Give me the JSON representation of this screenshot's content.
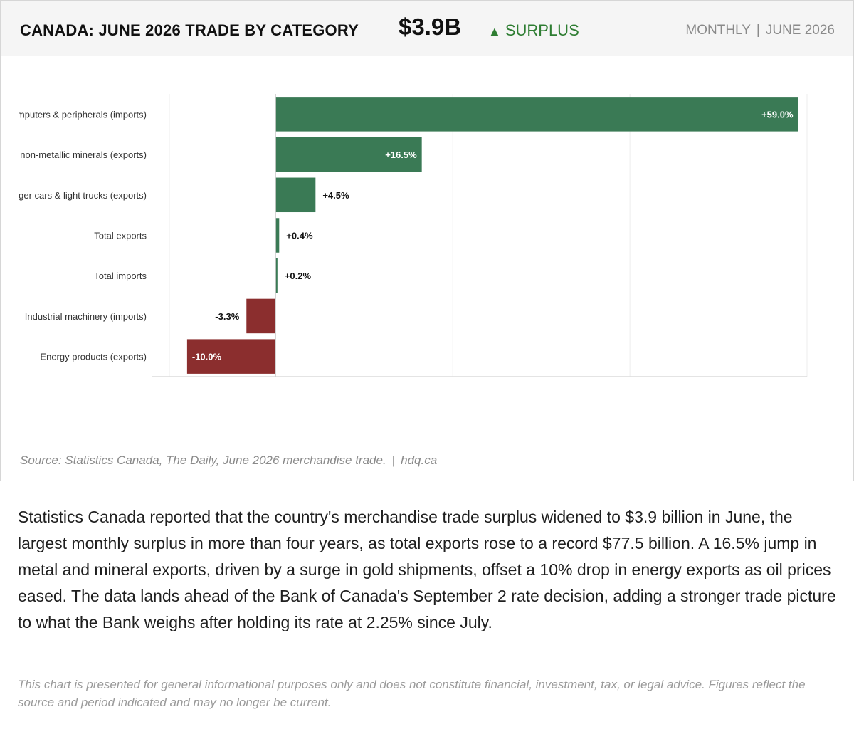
{
  "header": {
    "title": "CANADA: JUNE 2026 TRADE BY CATEGORY",
    "value": "$3.9B",
    "status_arrow": "▲",
    "status": "SURPLUS",
    "frequency": "MONTHLY",
    "separator": "|",
    "period": "JUNE 2026"
  },
  "colors": {
    "positive": "#3a7a55",
    "negative": "#8b2e2e",
    "status": "#2e7d32"
  },
  "chart_data": {
    "type": "bar",
    "orientation": "horizontal",
    "categories": [
      "Computers & peripherals (imports)",
      "Metal & non-metallic minerals (exports)",
      "Passenger cars & light trucks (exports)",
      "Total exports",
      "Total imports",
      "Industrial machinery (imports)",
      "Energy products (exports)"
    ],
    "values": [
      59.0,
      16.5,
      4.5,
      0.4,
      0.2,
      -3.3,
      -10.0
    ],
    "labels": [
      "+59.0%",
      "+16.5%",
      "+4.5%",
      "+0.4%",
      "+0.2%",
      "-3.3%",
      "-10.0%"
    ],
    "xlim": [
      -12,
      60
    ],
    "grid": true,
    "legend": "none"
  },
  "source": {
    "text": "Source: Statistics Canada, The Daily, June 2026 merchandise trade.",
    "separator": "|",
    "site": "hdq.ca"
  },
  "body": "Statistics Canada reported that the country's merchandise trade surplus widened to $3.9 billion in June, the largest monthly surplus in more than four years, as total exports rose to a record $77.5 billion. A 16.5% jump in metal and mineral exports, driven by a surge in gold shipments, offset a 10% drop in energy exports as oil prices eased. The data lands ahead of the Bank of Canada's September 2 rate decision, adding a stronger trade picture to what the Bank weighs after holding its rate at 2.25% since July.",
  "disclaimer": "This chart is presented for general informational purposes only and does not constitute financial, investment, tax, or legal advice. Figures reflect the source and period indicated and may no longer be current."
}
